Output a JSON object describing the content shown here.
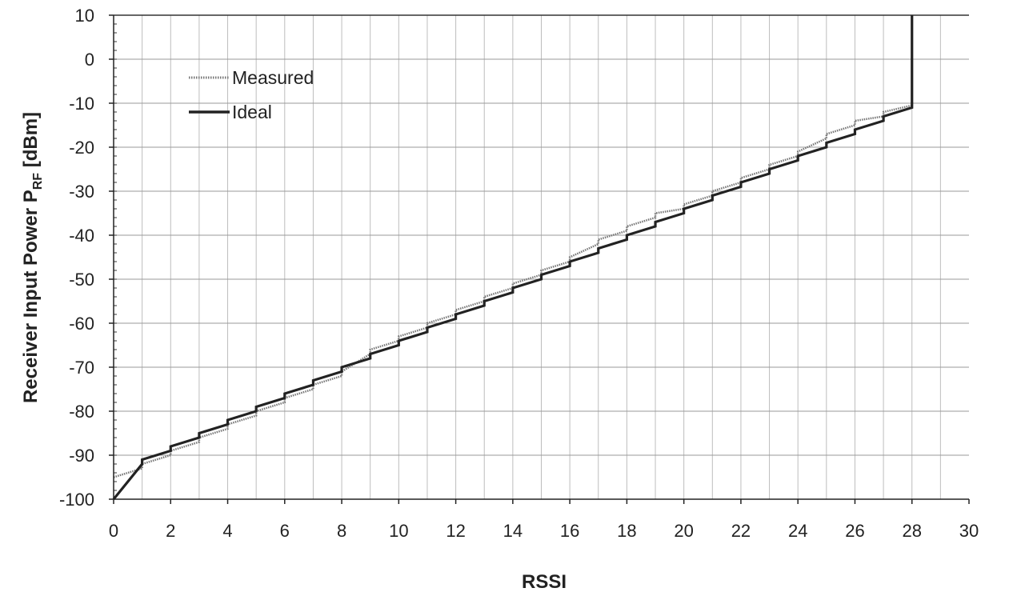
{
  "chart_data": {
    "type": "line",
    "xlabel": "RSSI",
    "ylabel_main": "Receiver Input Power P",
    "ylabel_sub": "RF",
    "ylabel_tail": " [dBm]",
    "xlim": [
      0,
      30
    ],
    "ylim": [
      -100,
      10
    ],
    "x_ticks": [
      "0",
      "2",
      "4",
      "6",
      "8",
      "10",
      "12",
      "14",
      "16",
      "18",
      "20",
      "22",
      "24",
      "26",
      "28",
      "30"
    ],
    "y_ticks": [
      "10",
      "0",
      "-10",
      "-20",
      "-30",
      "-40",
      "-50",
      "-60",
      "-70",
      "-80",
      "-90",
      "-100"
    ],
    "x_tick_values": [
      0,
      2,
      4,
      6,
      8,
      10,
      12,
      14,
      16,
      18,
      20,
      22,
      24,
      26,
      28,
      30
    ],
    "y_tick_values": [
      10,
      0,
      -10,
      -20,
      -30,
      -40,
      -50,
      -60,
      -70,
      -80,
      -90,
      -100
    ],
    "grid": true,
    "legend_position": "top-left",
    "series": [
      {
        "name": "Measured",
        "style": "dotted-thin",
        "color": "#777777",
        "steps": [
          [
            0,
            -95,
            -93
          ],
          [
            1,
            -92,
            -90
          ],
          [
            2,
            -89,
            -87
          ],
          [
            3,
            -86,
            -84
          ],
          [
            4,
            -83,
            -81
          ],
          [
            5,
            -80,
            -78
          ],
          [
            6,
            -77,
            -75
          ],
          [
            7,
            -74,
            -72
          ],
          [
            8,
            -71,
            -67
          ],
          [
            9,
            -66,
            -64
          ],
          [
            10,
            -63,
            -61
          ],
          [
            11,
            -60,
            -58
          ],
          [
            12,
            -57,
            -55
          ],
          [
            13,
            -54,
            -52
          ],
          [
            14,
            -51,
            -49
          ],
          [
            15,
            -48,
            -46
          ],
          [
            16,
            -45,
            -42
          ],
          [
            17,
            -41,
            -39
          ],
          [
            18,
            -38,
            -36
          ],
          [
            19,
            -35,
            -34
          ],
          [
            20,
            -33,
            -31
          ],
          [
            21,
            -30,
            -28
          ],
          [
            22,
            -27,
            -25
          ],
          [
            23,
            -24,
            -22
          ],
          [
            24,
            -21,
            -18
          ],
          [
            25,
            -17,
            -15
          ],
          [
            26,
            -14,
            -13
          ],
          [
            27,
            -12,
            -10.5
          ],
          [
            28,
            -9.5,
            10
          ]
        ]
      },
      {
        "name": "Ideal",
        "style": "solid-thick",
        "color": "#222222",
        "steps": [
          [
            0,
            -100,
            -92
          ],
          [
            1,
            -91,
            -89
          ],
          [
            2,
            -88,
            -86
          ],
          [
            3,
            -85,
            -83
          ],
          [
            4,
            -82,
            -80
          ],
          [
            5,
            -79,
            -77
          ],
          [
            6,
            -76,
            -74
          ],
          [
            7,
            -73,
            -71
          ],
          [
            8,
            -70,
            -68
          ],
          [
            9,
            -67,
            -65
          ],
          [
            10,
            -64,
            -62
          ],
          [
            11,
            -61,
            -59
          ],
          [
            12,
            -58,
            -56
          ],
          [
            13,
            -55,
            -53
          ],
          [
            14,
            -52,
            -50
          ],
          [
            15,
            -49,
            -47
          ],
          [
            16,
            -46,
            -44
          ],
          [
            17,
            -43,
            -41
          ],
          [
            18,
            -40,
            -38
          ],
          [
            19,
            -37,
            -35
          ],
          [
            20,
            -34,
            -32
          ],
          [
            21,
            -31,
            -29
          ],
          [
            22,
            -28,
            -26
          ],
          [
            23,
            -25,
            -23
          ],
          [
            24,
            -22,
            -20
          ],
          [
            25,
            -19,
            -17
          ],
          [
            26,
            -16,
            -14
          ],
          [
            27,
            -13,
            -11
          ],
          [
            28,
            -10,
            10
          ]
        ]
      }
    ]
  }
}
